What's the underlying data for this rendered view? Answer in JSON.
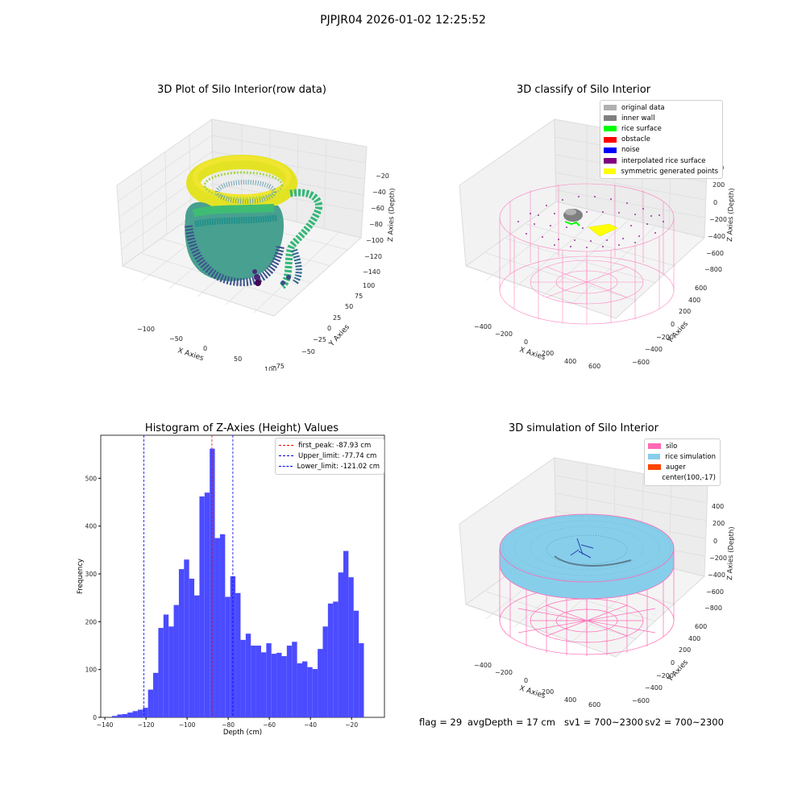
{
  "suptitle": "PJPJR04 2026-01-02 12:25:52",
  "colors": {
    "hist_bar": "#4b4bff",
    "first_peak": "#ff0000",
    "limit": "#0000ff",
    "silo": "#ff69b4",
    "rice_simulation": "#87ceeb",
    "auger": "#ff4500",
    "original_data": "#b0b0b0",
    "inner_wall": "#808080",
    "rice_surface": "#00ff00",
    "obstacle": "#ff0000",
    "noise": "#0000ff",
    "interpolated_rice_surface": "#800080",
    "symmetric_generated_points": "#ffff00"
  },
  "panel1": {
    "title": "3D Plot of Silo Interior(row data)",
    "xlabel": "X Axies",
    "ylabel": "Y Axies",
    "zlabel": "Z Axies (Depth)",
    "xticks": [
      "−100",
      "−50",
      "0",
      "50",
      "100"
    ],
    "yticks": [
      "−75",
      "−50",
      "−25",
      "0",
      "25",
      "50",
      "75",
      "100"
    ],
    "zticks": [
      "−20",
      "−40",
      "−60",
      "−80",
      "−100",
      "−120",
      "−140"
    ]
  },
  "panel2": {
    "title": "3D classify of Silo Interior",
    "xlabel": "X Axies",
    "ylabel": "Y Axies",
    "zlabel": "Z Axies (Depth)",
    "xticks": [
      "−400",
      "−200",
      "0",
      "200",
      "400",
      "600"
    ],
    "yticks": [
      "−600",
      "−400",
      "−200",
      "0",
      "200",
      "400",
      "600"
    ],
    "zticks": [
      "400",
      "200",
      "0",
      "−200",
      "−400",
      "−600",
      "−800"
    ],
    "legend": [
      {
        "label": "original data",
        "color": "#b0b0b0"
      },
      {
        "label": "inner wall",
        "color": "#808080"
      },
      {
        "label": "rice surface",
        "color": "#00ff00"
      },
      {
        "label": "obstacle",
        "color": "#ff0000"
      },
      {
        "label": "noise",
        "color": "#0000ff"
      },
      {
        "label": "interpolated rice surface",
        "color": "#800080"
      },
      {
        "label": "symmetric generated points",
        "color": "#ffff00"
      }
    ]
  },
  "panel3": {
    "title": "3D simulation of Silo Interior",
    "xlabel": "X Axies",
    "ylabel": "Y Axies",
    "zlabel": "Z Axies (Depth)",
    "xticks": [
      "−400",
      "−200",
      "0",
      "200",
      "400",
      "600"
    ],
    "yticks": [
      "−600",
      "−400",
      "−200",
      "0",
      "200",
      "400",
      "600"
    ],
    "zticks": [
      "400",
      "200",
      "0",
      "−200",
      "−400",
      "−600",
      "−800"
    ],
    "legend": [
      {
        "label": "silo",
        "color": "#ff69b4"
      },
      {
        "label": "rice simulation",
        "color": "#87ceeb"
      },
      {
        "label": "auger",
        "color": "#ff4500"
      },
      {
        "label": "center(100,-17)",
        "color": ""
      }
    ]
  },
  "footer": {
    "flag": "flag = 29",
    "avg": "avgDepth = 17 cm",
    "sv1": "sv1 = 700~2300",
    "sv2": "sv2 = 700~2300"
  },
  "chart_data": {
    "type": "bar",
    "title": "Histogram of Z-Axies (Height) Values",
    "xlabel": "Depth (cm)",
    "ylabel": "Frequency",
    "xlim": [
      -142,
      -4
    ],
    "ylim": [
      0,
      590
    ],
    "xticks": [
      -140,
      -120,
      -100,
      -80,
      -60,
      -40,
      -20
    ],
    "yticks": [
      0,
      100,
      200,
      300,
      400,
      500
    ],
    "bin_start": -136.5,
    "bin_width": 2.5,
    "values": [
      3,
      6,
      7,
      10,
      13,
      16,
      20,
      58,
      93,
      187,
      215,
      190,
      235,
      310,
      330,
      290,
      255,
      462,
      470,
      562,
      375,
      383,
      252,
      295,
      260,
      162,
      175,
      150,
      150,
      136,
      155,
      133,
      135,
      128,
      150,
      158,
      113,
      117,
      105,
      101,
      143,
      190,
      238,
      242,
      303,
      348,
      293,
      223,
      155
    ],
    "vlines": [
      {
        "label": "first_peak: -87.93 cm",
        "x": -87.93,
        "color": "#ff0000"
      },
      {
        "label": "Upper_limit: -77.74 cm",
        "x": -77.74,
        "color": "#0000ff"
      },
      {
        "label": "Lower_limit: -121.02 cm",
        "x": -121.02,
        "color": "#0000ff"
      }
    ],
    "legend_position": "upper right"
  }
}
